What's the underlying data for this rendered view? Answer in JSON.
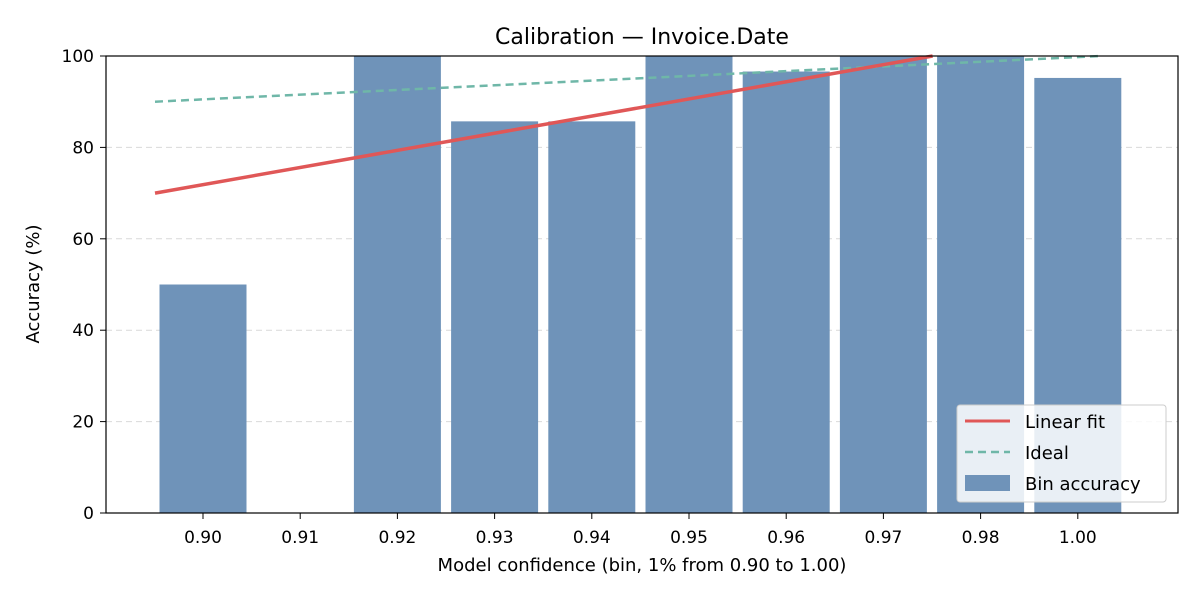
{
  "chart_data": {
    "type": "bar",
    "title": "Calibration — Invoice.Date",
    "xlabel": "Model confidence (bin, 1% from 0.90 to 1.00)",
    "ylabel": "Accuracy (%)",
    "categories": [
      "0.90",
      "0.91",
      "0.92",
      "0.93",
      "0.94",
      "0.95",
      "0.96",
      "0.97",
      "0.98",
      "1.00"
    ],
    "ylim": [
      0,
      100
    ],
    "yticks": [
      "0",
      "20",
      "40",
      "60",
      "80",
      "100"
    ],
    "grid": "y-dashed",
    "legend_position": "bottom-right",
    "series": [
      {
        "name": "Bin accuracy",
        "kind": "bar",
        "values": [
          50,
          null,
          100,
          85.7,
          85.7,
          100,
          96.6,
          100,
          100,
          95.2
        ],
        "color": "#6f93b9"
      },
      {
        "name": "Linear fit",
        "kind": "line",
        "start": [
          0.9,
          70
        ],
        "end": [
          0.98,
          100
        ],
        "color": "#e05757"
      },
      {
        "name": "Ideal",
        "kind": "dashed-line",
        "start": [
          0.9,
          90
        ],
        "end": [
          1.0,
          100
        ],
        "color": "#6fb7a8"
      }
    ]
  }
}
